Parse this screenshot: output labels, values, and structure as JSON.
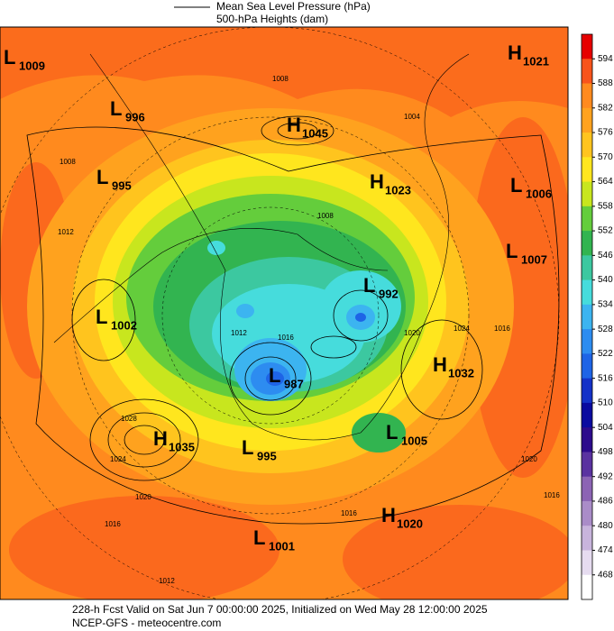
{
  "header": {
    "pressure_label": "Mean Sea Level Pressure (hPa)",
    "height_label": "500-hPa Heights (dam)"
  },
  "centers": [
    {
      "letter": "L",
      "value": "1009"
    },
    {
      "letter": "L",
      "value": "996"
    },
    {
      "letter": "H",
      "value": "1045"
    },
    {
      "letter": "L",
      "value": "995"
    },
    {
      "letter": "H",
      "value": "1023"
    },
    {
      "letter": "H",
      "value": "1021"
    },
    {
      "letter": "L",
      "value": "1006"
    },
    {
      "letter": "L",
      "value": "1007"
    },
    {
      "letter": "L",
      "value": "992"
    },
    {
      "letter": "L",
      "value": "1002"
    },
    {
      "letter": "H",
      "value": "1032"
    },
    {
      "letter": "L",
      "value": "987"
    },
    {
      "letter": "H",
      "value": "1035"
    },
    {
      "letter": "L",
      "value": "995"
    },
    {
      "letter": "L",
      "value": "1005"
    },
    {
      "letter": "H",
      "value": "1020"
    },
    {
      "letter": "L",
      "value": "1001"
    }
  ],
  "contour_labels": [
    "1008",
    "1008",
    "1012",
    "1008",
    "1004",
    "1012",
    "1016",
    "1020",
    "1024",
    "1016",
    "1028",
    "1024",
    "1020",
    "1016",
    "1012",
    "1016",
    "1020",
    "1016"
  ],
  "colorbar": {
    "labels": [
      "594",
      "588",
      "582",
      "576",
      "570",
      "564",
      "558",
      "552",
      "546",
      "540",
      "534",
      "528",
      "522",
      "516",
      "510",
      "504",
      "498",
      "492",
      "486",
      "480",
      "474",
      "468"
    ],
    "colors": [
      "#e60000",
      "#f8541c",
      "#ff8a1e",
      "#ffa21e",
      "#ffc41e",
      "#ffe61e",
      "#c8e61e",
      "#64cd3c",
      "#32b450",
      "#3cc8a0",
      "#46dcdc",
      "#3cb4f0",
      "#2d8cf0",
      "#1e64e6",
      "#1432c8",
      "#0a0aa0",
      "#2d0a8c",
      "#5a32a0",
      "#8c64b4",
      "#aa8cc8",
      "#c8b4dc",
      "#e6dcf0",
      "#ffffff"
    ]
  },
  "footer": {
    "line1": "228-h Fcst Valid on Sat Jun  7 00:00:00 2025, Initialized on Wed May 28 12:00:00 2025",
    "line2": "NCEP-GFS - meteocentre.com"
  }
}
